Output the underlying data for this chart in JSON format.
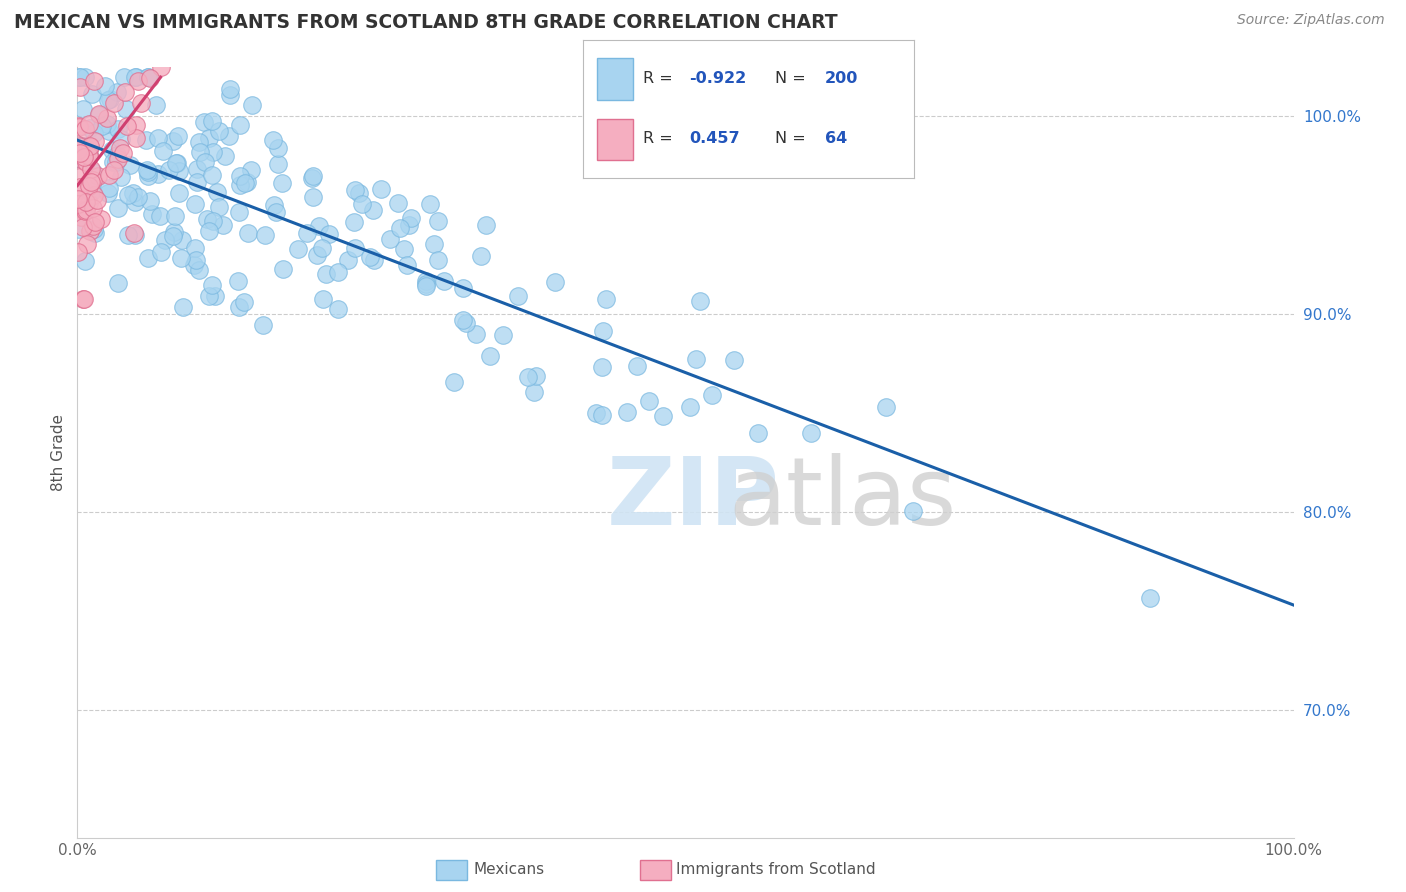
{
  "title": "MEXICAN VS IMMIGRANTS FROM SCOTLAND 8TH GRADE CORRELATION CHART",
  "source": "Source: ZipAtlas.com",
  "ylabel": "8th Grade",
  "xlim": [
    0.0,
    1.0
  ],
  "ylim": [
    0.635,
    1.025
  ],
  "ytick_labels_right": [
    "100.0%",
    "90.0%",
    "80.0%",
    "70.0%"
  ],
  "ytick_positions_right": [
    1.0,
    0.9,
    0.8,
    0.7
  ],
  "blue_R": -0.922,
  "blue_N": 200,
  "pink_R": 0.457,
  "pink_N": 64,
  "blue_color": "#a8d4f0",
  "pink_color": "#f5aec0",
  "blue_edge": "#7ab8e0",
  "pink_edge": "#e07090",
  "trend_blue_color": "#1a5fa8",
  "trend_pink_color": "#d04070",
  "background_color": "#ffffff",
  "grid_color": "#cccccc",
  "title_color": "#333333",
  "source_color": "#888888",
  "legend_color": "#2255bb",
  "watermark_zip_color": "#d0e4f4",
  "watermark_atlas_color": "#d0d0d0"
}
